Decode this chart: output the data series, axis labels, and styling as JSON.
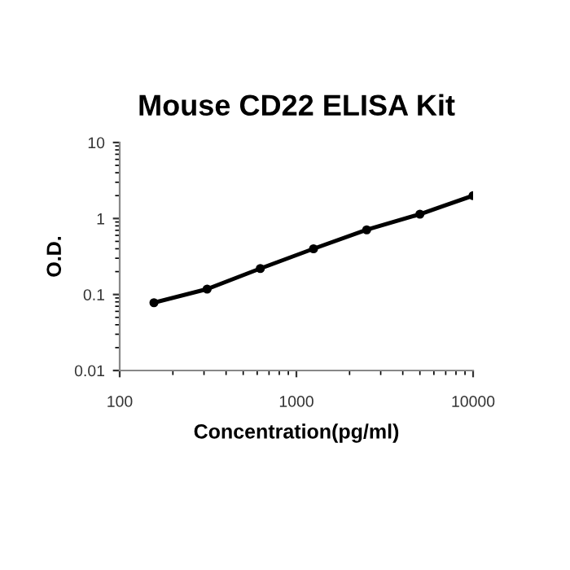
{
  "chart_data": {
    "type": "line",
    "title": "Mouse CD22 ELISA Kit",
    "xlabel": "Concentration(pg/ml)",
    "ylabel": "O.D.",
    "log": "xy",
    "x": [
      156.25,
      312.5,
      625,
      1250,
      2500,
      5000,
      10000
    ],
    "series": [
      {
        "color": "#000000",
        "values": [
          0.078,
          0.118,
          0.22,
          0.4,
          0.71,
          1.14,
          2.0
        ]
      }
    ],
    "xlim": [
      100,
      10000
    ],
    "ylim": [
      0.01,
      10
    ],
    "xticks": [
      100,
      1000,
      10000
    ],
    "yticks": [
      0.01,
      0.1,
      1,
      10
    ],
    "marker": "circle",
    "line_style": "solid"
  }
}
